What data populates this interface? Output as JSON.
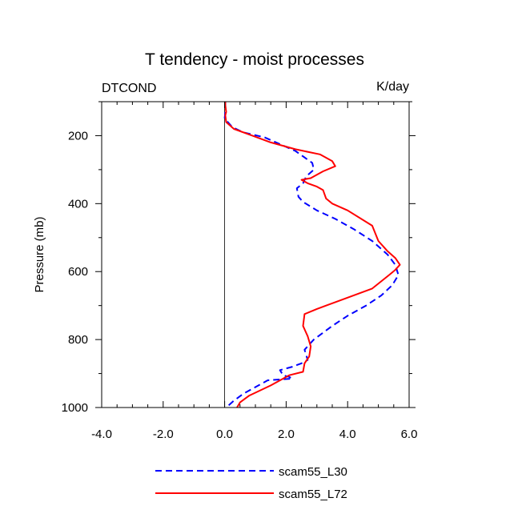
{
  "chart_data": {
    "type": "line",
    "title": "T tendency - moist processes",
    "left_label": "DTCOND",
    "right_label": "K/day",
    "xlabel": "",
    "ylabel": "Pressure (mb)",
    "xlim": [
      -4.0,
      6.0
    ],
    "ylim": [
      1000,
      100
    ],
    "y_inverted": true,
    "xticks": [
      -4.0,
      -2.0,
      0.0,
      2.0,
      4.0,
      6.0
    ],
    "xtick_labels": [
      "-4.0",
      "-2.0",
      "0.0",
      "2.0",
      "4.0",
      "6.0"
    ],
    "yticks": [
      200,
      400,
      600,
      800,
      1000
    ],
    "ytick_labels": [
      "200",
      "400",
      "600",
      "800",
      "1000"
    ],
    "zero_line_x": 0.0,
    "grid": false,
    "legend_position": "bottom-center",
    "series": [
      {
        "name": "scam55_L30",
        "style": "dashed",
        "color": "#0000ff",
        "x": [
          0.02,
          0.02,
          0.0,
          0.25,
          0.6,
          1.3,
          2.3,
          2.85,
          2.9,
          2.65,
          2.55,
          2.35,
          2.4,
          2.55,
          3.0,
          3.6,
          4.2,
          4.8,
          5.3,
          5.55,
          5.65,
          5.45,
          5.1,
          4.6,
          4.0,
          3.5,
          2.9,
          2.6,
          2.7,
          2.5,
          2.2,
          1.8,
          1.9,
          2.1,
          2.2,
          1.4,
          1.0,
          0.6,
          0.3,
          0.05
        ],
        "y": [
          100,
          130,
          150,
          175,
          190,
          205,
          245,
          280,
          300,
          320,
          340,
          355,
          380,
          395,
          420,
          445,
          475,
          510,
          550,
          580,
          610,
          640,
          670,
          700,
          730,
          760,
          800,
          830,
          860,
          870,
          880,
          890,
          905,
          910,
          915,
          920,
          940,
          960,
          980,
          1000
        ]
      },
      {
        "name": "scam55_L72",
        "style": "solid",
        "color": "#ff0000",
        "x": [
          0.02,
          0.02,
          0.05,
          0.02,
          0.05,
          0.3,
          0.9,
          1.5,
          2.3,
          3.1,
          3.5,
          3.6,
          3.2,
          3.0,
          2.8,
          2.5,
          2.7,
          3.0,
          3.2,
          3.3,
          3.5,
          4.0,
          4.8,
          5.0,
          5.3,
          5.55,
          5.7,
          5.55,
          5.35,
          4.8,
          3.6,
          3.0,
          2.6,
          2.55,
          2.7,
          2.8,
          2.75,
          2.6,
          2.55,
          2.1,
          1.5,
          0.8,
          0.5,
          0.4
        ],
        "y": [
          100,
          110,
          130,
          140,
          160,
          180,
          200,
          220,
          240,
          255,
          275,
          290,
          305,
          315,
          325,
          330,
          340,
          350,
          360,
          385,
          400,
          420,
          465,
          510,
          540,
          560,
          580,
          595,
          610,
          650,
          690,
          710,
          725,
          760,
          790,
          820,
          850,
          870,
          895,
          905,
          935,
          965,
          985,
          1000
        ]
      }
    ]
  }
}
